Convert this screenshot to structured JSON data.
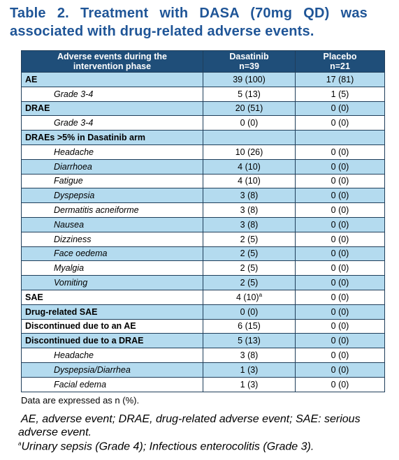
{
  "title": "Table 2. Treatment with DASA (70mg QD) was associated with drug-related adverse events.",
  "table": {
    "header": [
      [
        "Adverse events during the",
        "intervention phase"
      ],
      [
        "Dasatinib",
        "n=39"
      ],
      [
        "Placebo",
        "n=21"
      ]
    ],
    "groups": [
      {
        "label": "AE",
        "dasatinib": "39 (100)",
        "placebo": "17 (81)",
        "items": [
          {
            "label": "Grade 3-4",
            "dasatinib": "5 (13)",
            "placebo": "1 (5)"
          }
        ]
      },
      {
        "label": "DRAE",
        "dasatinib": "20 (51)",
        "placebo": "0 (0)",
        "items": [
          {
            "label": "Grade 3-4",
            "dasatinib": "0 (0)",
            "placebo": "0 (0)"
          }
        ]
      },
      {
        "label": "DRAEs >5% in Dasatinib arm",
        "items": [
          {
            "label": "Headache",
            "dasatinib": "10 (26)",
            "placebo": "0 (0)"
          },
          {
            "label": "Diarrhoea",
            "dasatinib": "4 (10)",
            "placebo": "0 (0)"
          },
          {
            "label": "Fatigue",
            "dasatinib": "4 (10)",
            "placebo": "0 (0)"
          },
          {
            "label": "Dyspepsia",
            "dasatinib": "3 (8)",
            "placebo": "0 (0)"
          },
          {
            "label": "Dermatitis acneiforme",
            "dasatinib": "3 (8)",
            "placebo": "0 (0)"
          },
          {
            "label": "Nausea",
            "dasatinib": "3 (8)",
            "placebo": "0 (0)"
          },
          {
            "label": "Dizziness",
            "dasatinib": "2 (5)",
            "placebo": "0 (0)"
          },
          {
            "label": "Face oedema",
            "dasatinib": "2 (5)",
            "placebo": "0 (0)"
          },
          {
            "label": "Myalgia",
            "dasatinib": "2 (5)",
            "placebo": "0 (0)"
          },
          {
            "label": "Vomiting",
            "dasatinib": "2 (5)",
            "placebo": "0 (0)"
          }
        ]
      },
      {
        "label": "SAE",
        "dasatinib": "4 (10)",
        "dasatinib_sup": "a",
        "placebo": "0 (0)",
        "items": []
      },
      {
        "label": "Drug-related SAE",
        "dasatinib": "0 (0)",
        "placebo": "0 (0)",
        "items": []
      },
      {
        "label": "Discontinued due to an AE",
        "dasatinib": "6 (15)",
        "placebo": "0 (0)",
        "items": []
      },
      {
        "label": "Discontinued due to a DRAE",
        "dasatinib": "5 (13)",
        "placebo": "0 (0)",
        "items": [
          {
            "label": "Headache",
            "dasatinib": "3 (8)",
            "placebo": "0 (0)"
          },
          {
            "label": "Dyspepsia/Diarrhea",
            "dasatinib": "1 (3)",
            "placebo": "0 (0)"
          },
          {
            "label": "Facial edema",
            "dasatinib": "1 (3)",
            "placebo": "0 (0)"
          }
        ]
      }
    ],
    "note": "Data are expressed as n (%)."
  },
  "footnotes": {
    "abbreviations": "AE, adverse event; DRAE, drug-related adverse event; SAE: serious adverse event.",
    "marker": "a",
    "text": "Urinary sepsis (Grade 4); Infectious enterocolitis (Grade 3)."
  }
}
